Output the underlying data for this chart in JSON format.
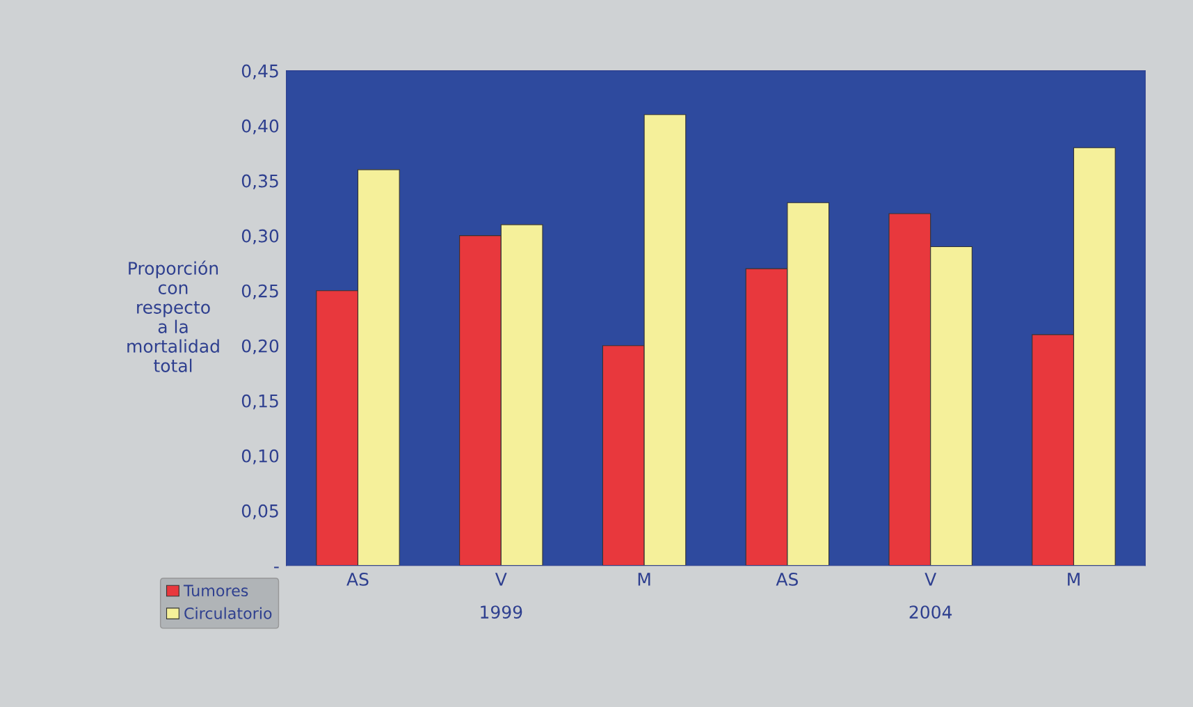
{
  "chart_data": {
    "type": "bar",
    "ylabel": "Proporción\ncon\nrespecto\na la\nmortalidad\ntotal",
    "categories": [
      "AS",
      "V",
      "M",
      "AS",
      "V",
      "M"
    ],
    "series": [
      {
        "name": "Tumores",
        "color": "#e8383d",
        "values": [
          0.25,
          0.3,
          0.2,
          0.27,
          0.32,
          0.21
        ]
      },
      {
        "name": "Circulatorio",
        "color": "#f5f09a",
        "values": [
          0.36,
          0.31,
          0.41,
          0.33,
          0.29,
          0.38
        ]
      }
    ],
    "annotations": [
      "1999",
      "2004"
    ],
    "ylim": [
      0,
      0.45
    ],
    "yticks": [
      {
        "value": 0,
        "label": "-"
      },
      {
        "value": 0.05,
        "label": "0,05"
      },
      {
        "value": 0.1,
        "label": "0,10"
      },
      {
        "value": 0.15,
        "label": "0,15"
      },
      {
        "value": 0.2,
        "label": "0,20"
      },
      {
        "value": 0.25,
        "label": "0,25"
      },
      {
        "value": 0.3,
        "label": "0,30"
      },
      {
        "value": 0.35,
        "label": "0,35"
      },
      {
        "value": 0.4,
        "label": "0,40"
      },
      {
        "value": 0.45,
        "label": "0,45"
      }
    ],
    "grid": false,
    "legend": "bottom left"
  }
}
